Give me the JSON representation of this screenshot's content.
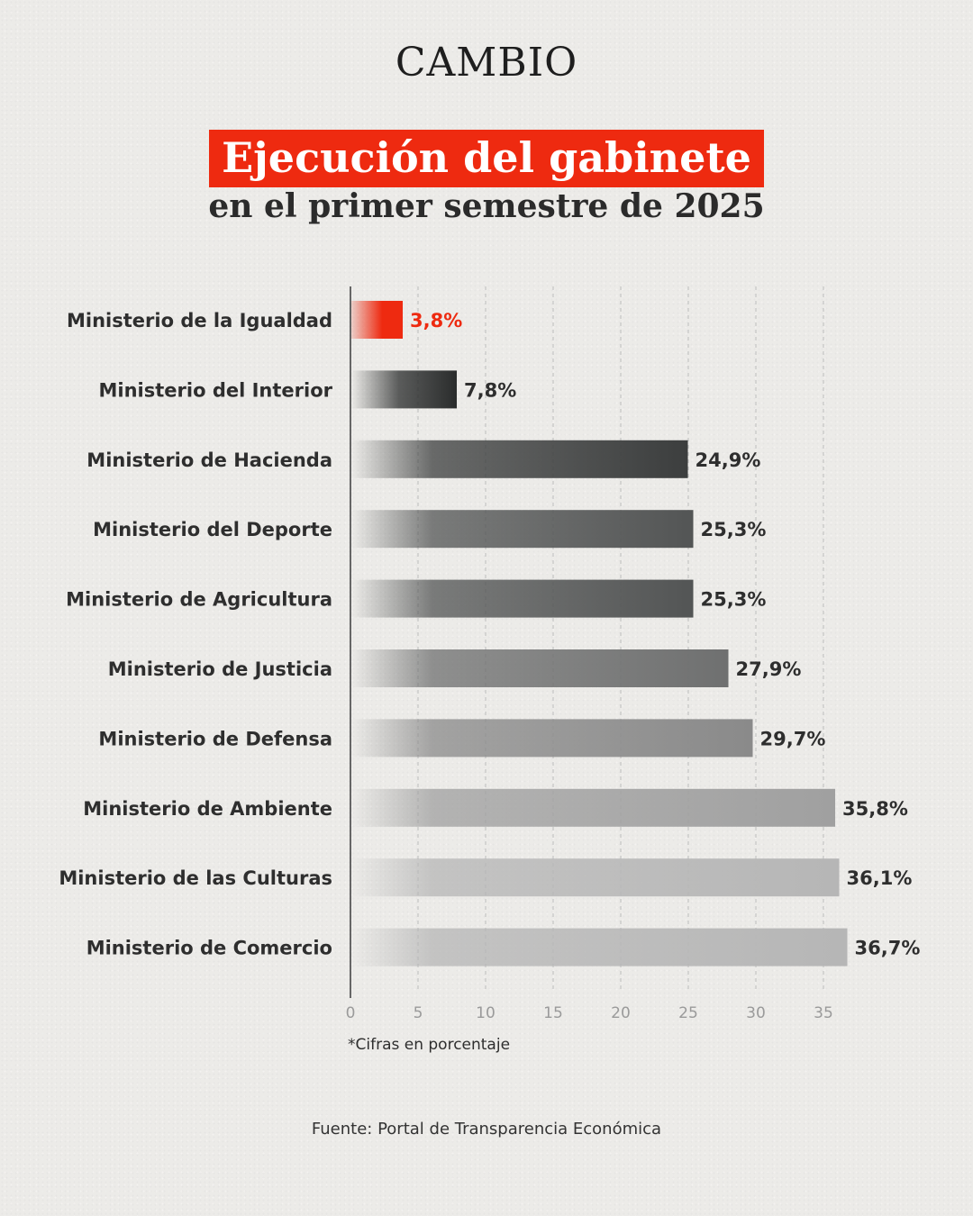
{
  "brand": "CAMBIO",
  "title": "Ejecución del gabinete",
  "subtitle": "en el primer semestre de 2025",
  "note": "*Cifras en porcentaje",
  "source": "Fuente: Portal de Transparencia Económica",
  "colors": {
    "highlight": "#ee2a10"
  },
  "chart_data": {
    "type": "bar",
    "orientation": "horizontal",
    "categories": [
      "Ministerio de la Igualdad",
      "Ministerio del Interior",
      "Ministerio de Hacienda",
      "Ministerio del Deporte",
      "Ministerio de Agricultura",
      "Ministerio de Justicia",
      "Ministerio de Defensa",
      "Ministerio de Ambiente",
      "Ministerio de las Culturas",
      "Ministerio de Comercio"
    ],
    "values": [
      3.8,
      7.8,
      24.9,
      25.3,
      25.3,
      27.9,
      29.7,
      35.8,
      36.1,
      36.7
    ],
    "value_labels": [
      "3,8%",
      "7,8%",
      "24,9%",
      "25,3%",
      "25,3%",
      "27,9%",
      "29,7%",
      "35,8%",
      "36,1%",
      "36,7%"
    ],
    "bar_colors": [
      "#ee2a10",
      "#2a2c2c",
      "#3c3e3e",
      "#535555",
      "#535555",
      "#6f7070",
      "#8a8a8a",
      "#a0a0a0",
      "#b6b6b6",
      "#b6b6b6"
    ],
    "highlight_index": 0,
    "x_ticks": [
      0,
      5,
      10,
      15,
      20,
      25,
      30,
      35
    ],
    "x_tick_labels": [
      "0",
      "5",
      "10",
      "15",
      "20",
      "25",
      "30",
      "35"
    ],
    "xlim": [
      0,
      35
    ],
    "grid": "vertical-dashed"
  }
}
